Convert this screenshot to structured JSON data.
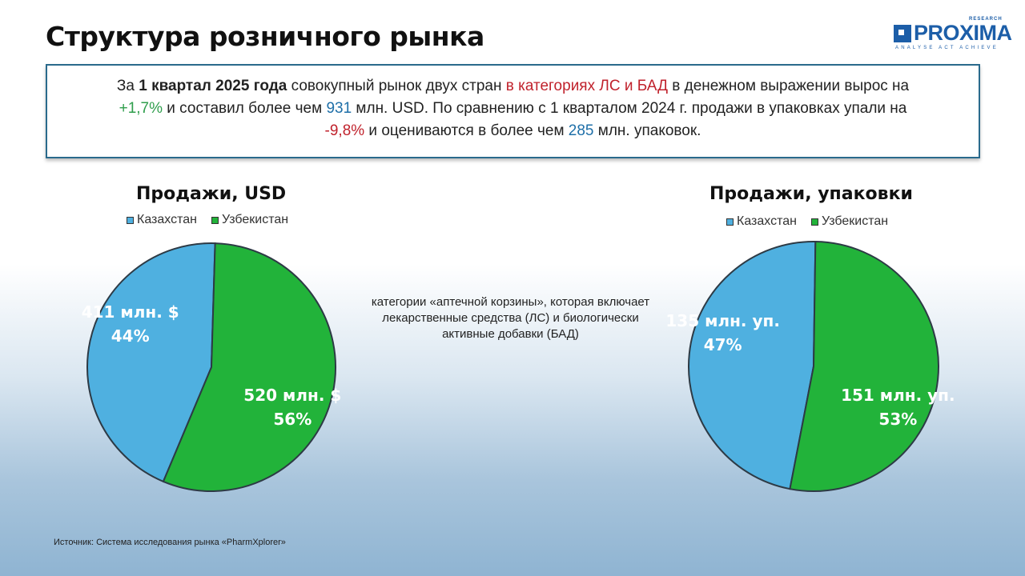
{
  "header": {
    "title": "Структура розничного рынка",
    "logo": {
      "word": "PROXIMA",
      "research": "RESEARCH",
      "tagline": "ANALYSE ACT ACHIEVE"
    }
  },
  "summary": {
    "p1": "За ",
    "p2": "1 квартал 2025 года",
    "p3": " совокупный рынок двух стран ",
    "p4": "в категориях ЛС и БАД",
    "p5": " в денежном выражении вырос на ",
    "p6": "+1,7%",
    "p7": " и составил более чем ",
    "p8": "931",
    "p9": " млн. USD. По сравнению с 1 кварталом 2024 г. продажи в упаковках упали на ",
    "p10": "-9,8%",
    "p11": " и оцениваются в более чем ",
    "p12": "285",
    "p13": " млн. упаковок."
  },
  "note": "категории «аптечной корзины», которая включает лекарственные средства (ЛС) и биологически активные добавки (БАД)",
  "source": "Источник: Система исследования рынка «PharmXplorer»",
  "colors": {
    "kazakhstan": "#4fb0e0",
    "uzbekistan": "#22b33a",
    "outline": "#2d3a45"
  },
  "chart_data": [
    {
      "type": "pie",
      "title": "Продажи, USD",
      "legend": [
        "Казахстан",
        "Узбекистан"
      ],
      "slices": [
        {
          "name": "Казахстан",
          "value": 411,
          "label": "411 млн. $",
          "percent": "44%"
        },
        {
          "name": "Узбекистан",
          "value": 520,
          "label": "520 млн. $",
          "percent": "56%"
        }
      ]
    },
    {
      "type": "pie",
      "title": "Продажи, упаковки",
      "legend": [
        "Казахстан",
        "Узбекистан"
      ],
      "slices": [
        {
          "name": "Казахстан",
          "value": 135,
          "label": "135 млн. уп.",
          "percent": "47%"
        },
        {
          "name": "Узбекистан",
          "value": 151,
          "label": "151 млн. уп.",
          "percent": "53%"
        }
      ]
    }
  ]
}
